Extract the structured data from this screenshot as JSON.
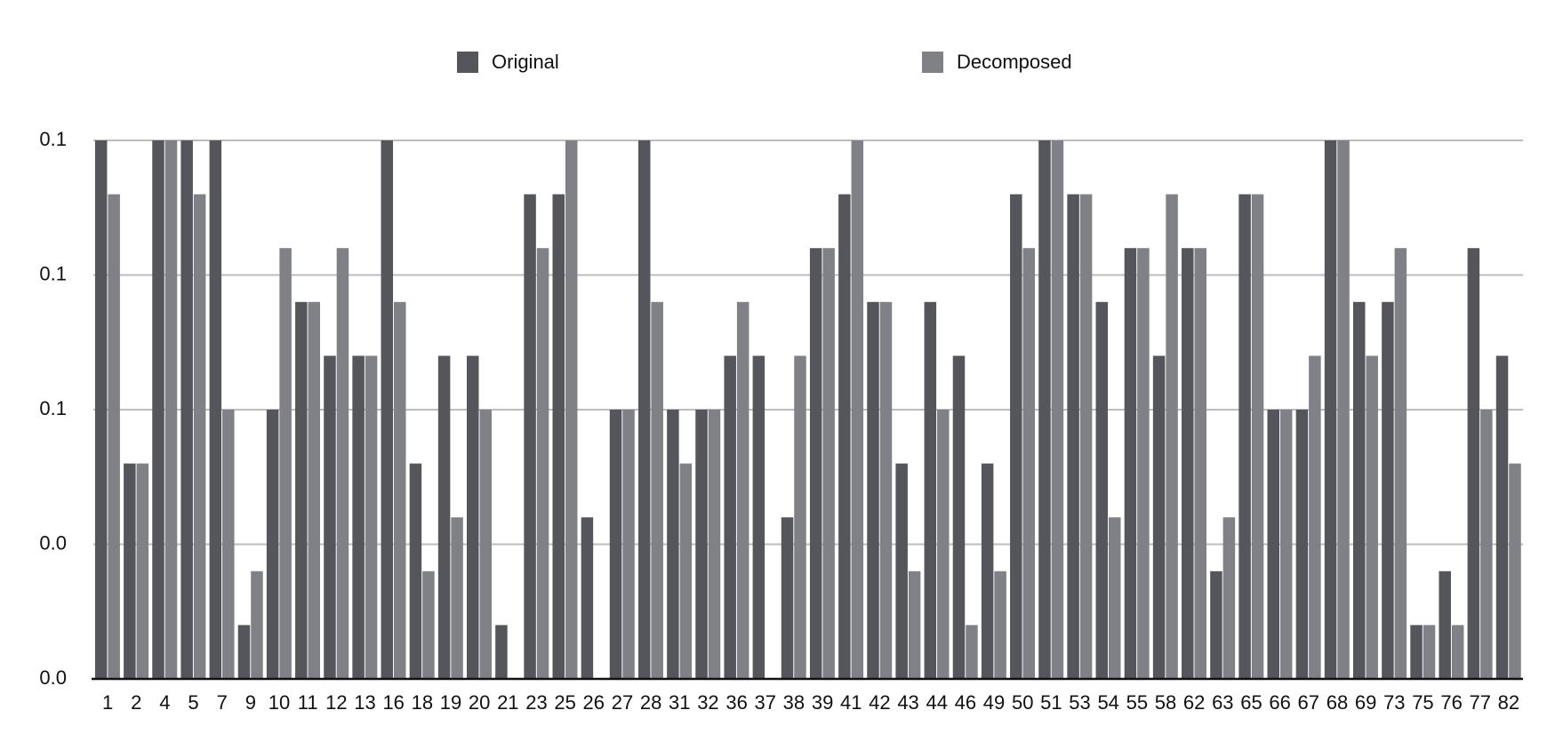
{
  "chart_data": {
    "type": "bar",
    "categories": [
      "1",
      "2",
      "4",
      "5",
      "7",
      "9",
      "10",
      "11",
      "12",
      "13",
      "16",
      "18",
      "19",
      "20",
      "21",
      "23",
      "25",
      "26",
      "27",
      "28",
      "31",
      "32",
      "36",
      "37",
      "38",
      "39",
      "41",
      "42",
      "43",
      "44",
      "46",
      "49",
      "50",
      "51",
      "53",
      "54",
      "55",
      "58",
      "62",
      "63",
      "65",
      "66",
      "67",
      "68",
      "69",
      "73",
      "75",
      "76",
      "77",
      "82"
    ],
    "series": [
      {
        "name": "Original",
        "color": "#55565b",
        "values": [
          0.1,
          0.04,
          0.1,
          0.1,
          0.1,
          0.01,
          0.05,
          0.07,
          0.06,
          0.06,
          0.1,
          0.04,
          0.06,
          0.06,
          0.01,
          0.09,
          0.09,
          0.03,
          0.05,
          0.1,
          0.05,
          0.05,
          0.06,
          0.06,
          0.03,
          0.08,
          0.09,
          0.07,
          0.04,
          0.07,
          0.06,
          0.04,
          0.09,
          0.1,
          0.09,
          0.07,
          0.08,
          0.06,
          0.08,
          0.02,
          0.09,
          0.05,
          0.05,
          0.1,
          0.07,
          0.07,
          0.01,
          0.02,
          0.08,
          0.06
        ]
      },
      {
        "name": "Decomposed",
        "color": "#808187",
        "values": [
          0.09,
          0.04,
          0.1,
          0.09,
          0.05,
          0.02,
          0.08,
          0.07,
          0.08,
          0.06,
          0.07,
          0.02,
          0.03,
          0.05,
          0,
          0.08,
          0.1,
          0,
          0.05,
          0.07,
          0.04,
          0.05,
          0.07,
          0,
          0.06,
          0.08,
          0.1,
          0.07,
          0.02,
          0.05,
          0.01,
          0.02,
          0.08,
          0.1,
          0.09,
          0.03,
          0.08,
          0.09,
          0.08,
          0.03,
          0.09,
          0.05,
          0.06,
          0.1,
          0.06,
          0.08,
          0.01,
          0.01,
          0.05,
          0.04
        ]
      }
    ],
    "ylim": [
      0,
      0.1
    ],
    "yticks": [
      {
        "value": 0,
        "label": "0.0"
      },
      {
        "value": 0.025,
        "label": "0.0"
      },
      {
        "value": 0.05,
        "label": "0.1"
      },
      {
        "value": 0.075,
        "label": "0.1"
      },
      0.1
    ],
    "grid": true,
    "legend": "top"
  }
}
